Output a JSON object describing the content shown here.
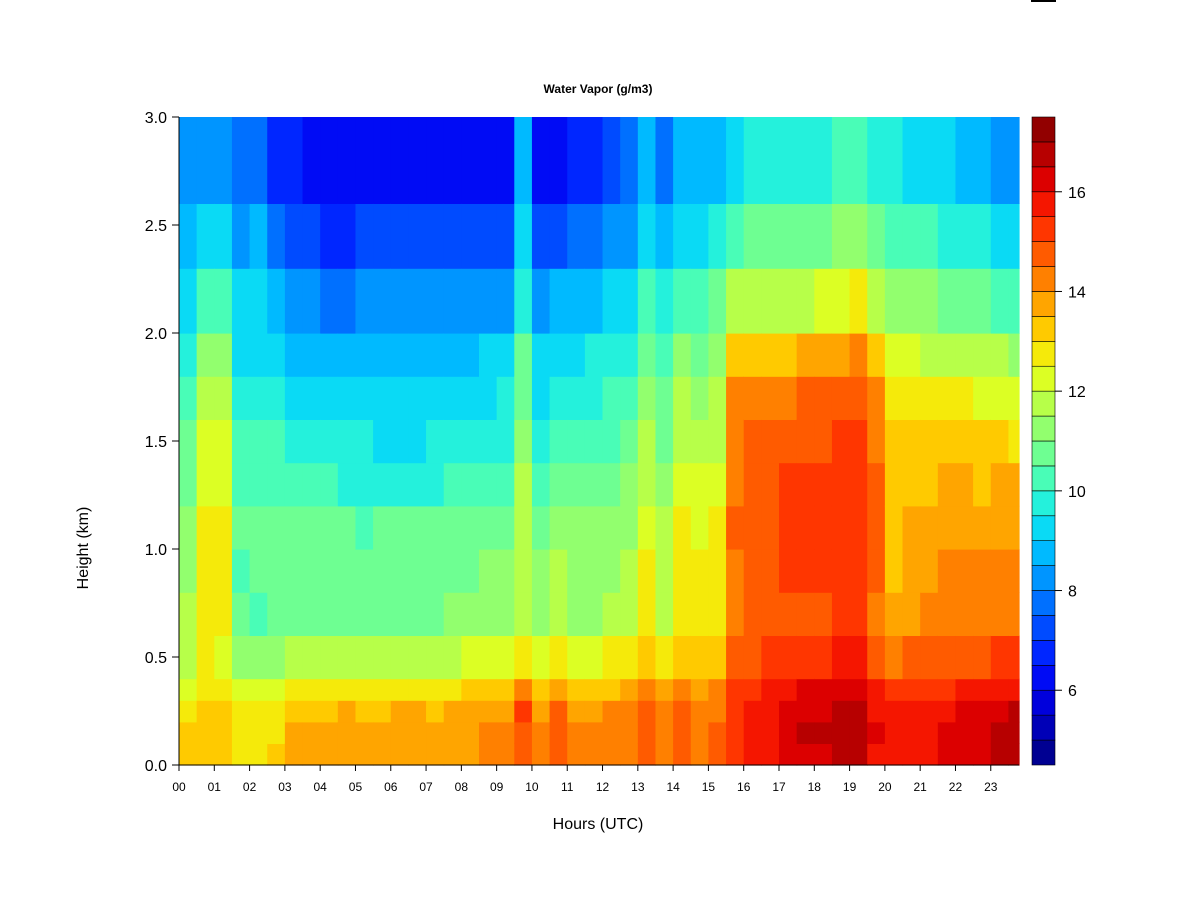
{
  "chart_data": {
    "type": "heatmap",
    "title": "Water Vapor (g/m3)",
    "xlabel": "Hours (UTC)",
    "ylabel": "Height (km)",
    "x_tick_labels": [
      "00",
      "01",
      "02",
      "03",
      "04",
      "05",
      "06",
      "07",
      "08",
      "09",
      "10",
      "11",
      "12",
      "13",
      "14",
      "15",
      "16",
      "17",
      "18",
      "19",
      "20",
      "21",
      "22",
      "23"
    ],
    "y_ticks": [
      0.0,
      0.5,
      1.0,
      1.5,
      2.0,
      2.5,
      3.0
    ],
    "y_tick_labels": [
      "0.0",
      "0.5",
      "1.0",
      "1.5",
      "2.0",
      "2.5",
      "3.0"
    ],
    "xlim": [
      0,
      23.8
    ],
    "ylim": [
      0,
      3.0
    ],
    "colorbar": {
      "min": 4.5,
      "max": 17.5,
      "ticks": [
        6,
        8,
        10,
        12,
        14,
        16
      ],
      "tick_labels": [
        "6",
        "8",
        "10",
        "12",
        "14",
        "16"
      ],
      "levels": 26,
      "colors": [
        "#000080",
        "#0000b0",
        "#0000e0",
        "#0010ff",
        "#0040ff",
        "#0070ff",
        "#00a0ff",
        "#00d0ff",
        "#20f0e0",
        "#50ffb0",
        "#80ff80",
        "#b0ff50",
        "#e0ff20",
        "#ffe000",
        "#ffb000",
        "#ff8000",
        "#ff5000",
        "#ff2000",
        "#e00000",
        "#b00000",
        "#800000"
      ]
    },
    "height_levels_km": [
      0.0,
      0.1,
      0.2,
      0.3,
      0.4,
      0.6,
      0.8,
      1.0,
      1.2,
      1.4,
      1.6,
      1.8,
      2.0,
      2.3,
      2.6,
      3.0
    ],
    "time_bins_hours": [
      {
        "t": 0,
        "profile": [
          13.1,
          13.0,
          12.9,
          12.3,
          12.0,
          11.5,
          11.0,
          11.0,
          10.8,
          10.5,
          10.2,
          9.9,
          9.3,
          8.7,
          8.3,
          7.8
        ]
      },
      {
        "t": 0.5,
        "profile": [
          13.2,
          13.3,
          13.4,
          12.8,
          12.6,
          12.5,
          12.5,
          12.5,
          12.4,
          12.3,
          12.0,
          11.3,
          10.0,
          9.0,
          8.4,
          7.8
        ]
      },
      {
        "t": 1,
        "profile": [
          13.0,
          13.1,
          13.1,
          12.5,
          12.4,
          12.5,
          12.8,
          12.6,
          12.3,
          12.2,
          11.9,
          11.2,
          10.0,
          9.1,
          8.2,
          7.4
        ]
      },
      {
        "t": 1.5,
        "profile": [
          12.8,
          12.8,
          12.9,
          12.1,
          11.2,
          10.5,
          10.4,
          10.6,
          10.3,
          10.1,
          9.8,
          9.3,
          9.0,
          8.3,
          7.6,
          6.7
        ]
      },
      {
        "t": 2,
        "profile": [
          12.8,
          12.7,
          12.7,
          12.1,
          11.1,
          10.3,
          10.5,
          10.6,
          10.2,
          10.0,
          9.8,
          9.4,
          9.0,
          8.5,
          7.6,
          6.6
        ]
      },
      {
        "t": 2.5,
        "profile": [
          13.0,
          12.9,
          12.8,
          12.1,
          11.1,
          10.6,
          10.8,
          10.7,
          10.2,
          10.0,
          9.6,
          9.1,
          8.6,
          7.8,
          6.9,
          6.2
        ]
      },
      {
        "t": 3,
        "profile": [
          13.5,
          13.5,
          13.3,
          12.6,
          11.8,
          10.8,
          10.6,
          10.5,
          10.2,
          9.8,
          9.3,
          8.8,
          8.2,
          7.3,
          6.5,
          5.8
        ]
      },
      {
        "t": 3.5,
        "profile": [
          13.6,
          13.5,
          13.4,
          12.7,
          11.9,
          10.9,
          10.6,
          10.6,
          10.1,
          9.7,
          9.2,
          8.7,
          8.0,
          7.0,
          6.0,
          5.5
        ]
      },
      {
        "t": 4,
        "profile": [
          13.6,
          13.6,
          13.4,
          12.8,
          11.8,
          10.9,
          10.7,
          10.5,
          10.0,
          9.5,
          9.1,
          8.6,
          7.8,
          6.9,
          6.0,
          5.4
        ]
      },
      {
        "t": 4.5,
        "profile": [
          13.6,
          13.6,
          13.5,
          12.8,
          11.8,
          10.8,
          10.7,
          10.5,
          9.9,
          9.5,
          9.1,
          8.6,
          7.8,
          6.9,
          6.0,
          5.5
        ]
      },
      {
        "t": 5,
        "profile": [
          13.6,
          13.6,
          13.4,
          12.8,
          11.8,
          10.8,
          10.7,
          10.4,
          9.9,
          9.5,
          9.1,
          8.7,
          8.0,
          7.0,
          6.0,
          5.5
        ]
      },
      {
        "t": 5.5,
        "profile": [
          13.6,
          13.5,
          13.4,
          12.8,
          11.9,
          10.8,
          10.8,
          10.5,
          9.8,
          9.4,
          9.1,
          8.8,
          8.1,
          7.0,
          6.0,
          5.4
        ]
      },
      {
        "t": 6,
        "profile": [
          13.6,
          13.6,
          13.5,
          12.8,
          11.9,
          10.8,
          10.8,
          10.6,
          9.9,
          9.4,
          9.0,
          8.7,
          8.1,
          7.0,
          6.0,
          5.4
        ]
      },
      {
        "t": 6.5,
        "profile": [
          13.6,
          13.6,
          13.5,
          12.8,
          11.8,
          10.9,
          10.8,
          10.5,
          9.9,
          9.4,
          9.0,
          8.7,
          8.1,
          7.0,
          6.0,
          5.4
        ]
      },
      {
        "t": 7,
        "profile": [
          13.7,
          13.6,
          13.4,
          12.8,
          11.9,
          10.9,
          10.8,
          10.5,
          9.9,
          9.5,
          9.1,
          8.8,
          8.1,
          7.0,
          6.0,
          5.4
        ]
      },
      {
        "t": 7.5,
        "profile": [
          13.7,
          13.7,
          13.5,
          12.9,
          12.0,
          11.0,
          10.8,
          10.5,
          10.0,
          9.6,
          9.2,
          8.8,
          8.1,
          7.1,
          6.0,
          5.4
        ]
      },
      {
        "t": 8,
        "profile": [
          13.9,
          13.9,
          13.7,
          13.0,
          12.1,
          11.0,
          10.9,
          10.6,
          10.1,
          9.7,
          9.3,
          8.9,
          8.2,
          7.2,
          6.1,
          5.5
        ]
      },
      {
        "t": 8.5,
        "profile": [
          14.0,
          14.0,
          13.8,
          13.1,
          12.2,
          11.1,
          11.0,
          10.7,
          10.2,
          9.8,
          9.4,
          9.0,
          8.3,
          7.3,
          6.2,
          5.6
        ]
      },
      {
        "t": 9,
        "profile": [
          14.0,
          14.0,
          13.8,
          13.1,
          12.2,
          11.2,
          11.1,
          10.8,
          10.3,
          9.9,
          9.5,
          9.0,
          8.3,
          7.3,
          6.3,
          5.6
        ]
      },
      {
        "t": 9.5,
        "profile": [
          14.6,
          14.7,
          15.0,
          14.2,
          12.8,
          12.0,
          12.0,
          11.8,
          11.5,
          11.2,
          10.9,
          10.5,
          9.9,
          9.2,
          8.6,
          8.0
        ]
      },
      {
        "t": 10,
        "profile": [
          14.1,
          14.1,
          13.9,
          13.2,
          12.3,
          11.2,
          11.1,
          10.9,
          10.3,
          9.9,
          9.4,
          9.0,
          8.3,
          7.3,
          6.3,
          5.5
        ]
      },
      {
        "t": 10.5,
        "profile": [
          14.5,
          14.6,
          14.5,
          13.8,
          12.7,
          11.6,
          11.6,
          11.3,
          10.8,
          10.4,
          9.9,
          9.3,
          8.5,
          7.4,
          6.3,
          5.5
        ]
      },
      {
        "t": 11,
        "profile": [
          14.1,
          14.1,
          13.9,
          13.3,
          12.4,
          11.3,
          11.2,
          11.0,
          10.6,
          10.2,
          9.8,
          9.3,
          8.6,
          7.6,
          6.6,
          6.0
        ]
      },
      {
        "t": 11.5,
        "profile": [
          14.0,
          14.0,
          13.9,
          13.3,
          12.4,
          11.4,
          11.3,
          11.1,
          10.7,
          10.3,
          9.9,
          9.5,
          8.8,
          7.8,
          6.9,
          6.3
        ]
      },
      {
        "t": 12,
        "profile": [
          14.1,
          14.1,
          14.0,
          13.4,
          12.5,
          11.5,
          11.4,
          11.2,
          10.8,
          10.4,
          10.0,
          9.6,
          9.0,
          8.1,
          7.2,
          6.6
        ]
      },
      {
        "t": 12.5,
        "profile": [
          14.2,
          14.2,
          14.1,
          13.6,
          12.8,
          11.8,
          11.6,
          11.4,
          11.0,
          10.6,
          10.2,
          9.8,
          9.2,
          8.3,
          7.5,
          6.9
        ]
      },
      {
        "t": 13,
        "profile": [
          14.7,
          14.8,
          14.8,
          14.2,
          13.4,
          12.6,
          12.5,
          12.3,
          11.9,
          11.6,
          11.1,
          10.6,
          10.1,
          9.3,
          8.6,
          8.0
        ]
      },
      {
        "t": 13.5,
        "profile": [
          14.3,
          14.3,
          14.2,
          13.7,
          12.9,
          12.0,
          11.8,
          11.6,
          11.3,
          10.9,
          10.5,
          10.1,
          9.5,
          8.6,
          7.8,
          7.2
        ]
      },
      {
        "t": 14,
        "profile": [
          14.6,
          14.6,
          14.5,
          14.0,
          13.4,
          12.7,
          12.6,
          12.5,
          12.2,
          11.9,
          11.5,
          11.0,
          10.3,
          9.4,
          8.6,
          7.9
        ]
      },
      {
        "t": 14.5,
        "profile": [
          14.4,
          14.4,
          14.3,
          13.9,
          13.3,
          12.6,
          12.5,
          12.4,
          12.1,
          11.8,
          11.4,
          10.9,
          10.3,
          9.4,
          8.6,
          7.9
        ]
      },
      {
        "t": 15,
        "profile": [
          14.5,
          14.5,
          14.4,
          14.0,
          13.4,
          12.8,
          12.7,
          12.6,
          12.3,
          12.0,
          11.6,
          11.2,
          10.6,
          9.6,
          8.8,
          8.1
        ]
      },
      {
        "t": 15.5,
        "profile": [
          15.3,
          15.4,
          15.3,
          15.0,
          14.7,
          14.3,
          14.4,
          14.5,
          14.4,
          14.3,
          14.0,
          13.0,
          11.6,
          10.3,
          9.3,
          8.6
        ]
      },
      {
        "t": 16,
        "profile": [
          15.5,
          15.6,
          15.5,
          15.2,
          14.9,
          14.5,
          14.6,
          14.7,
          14.6,
          14.5,
          14.2,
          13.2,
          11.8,
          10.5,
          9.5,
          8.8
        ]
      },
      {
        "t": 16.5,
        "profile": [
          15.8,
          15.9,
          15.8,
          15.5,
          15.0,
          14.6,
          14.8,
          14.9,
          14.8,
          14.7,
          14.3,
          13.3,
          11.9,
          10.6,
          9.6,
          8.9
        ]
      },
      {
        "t": 17,
        "profile": [
          16.2,
          16.3,
          16.2,
          15.8,
          15.2,
          14.8,
          15.0,
          15.1,
          15.0,
          14.8,
          14.4,
          13.4,
          11.9,
          10.6,
          9.6,
          8.9
        ]
      },
      {
        "t": 17.5,
        "profile": [
          16.4,
          16.5,
          16.4,
          16.0,
          15.4,
          14.9,
          15.1,
          15.2,
          15.1,
          14.9,
          14.5,
          13.5,
          12.0,
          10.7,
          9.7,
          9.0
        ]
      },
      {
        "t": 18,
        "profile": [
          16.4,
          16.5,
          16.4,
          16.0,
          15.4,
          14.9,
          15.1,
          15.2,
          15.1,
          14.9,
          14.6,
          13.7,
          12.2,
          10.9,
          9.9,
          9.2
        ]
      },
      {
        "t": 18.5,
        "profile": [
          16.5,
          16.6,
          16.5,
          16.1,
          15.5,
          15.0,
          15.2,
          15.3,
          15.2,
          15.0,
          14.7,
          13.9,
          12.4,
          11.1,
          10.1,
          9.4
        ]
      },
      {
        "t": 19,
        "profile": [
          16.6,
          16.7,
          16.6,
          16.2,
          15.6,
          15.1,
          15.3,
          15.4,
          15.3,
          15.1,
          14.8,
          14.0,
          12.5,
          11.2,
          10.2,
          9.5
        ]
      },
      {
        "t": 19.5,
        "profile": [
          15.9,
          16.0,
          15.9,
          15.5,
          14.9,
          14.4,
          14.5,
          14.6,
          14.5,
          14.3,
          14.0,
          13.3,
          12.0,
          10.8,
          9.9,
          9.3
        ]
      },
      {
        "t": 20,
        "profile": [
          15.5,
          15.6,
          15.5,
          15.1,
          14.4,
          13.6,
          13.4,
          13.3,
          13.2,
          13.0,
          12.7,
          12.2,
          11.4,
          10.4,
          9.6,
          9.0
        ]
      },
      {
        "t": 20.5,
        "profile": [
          15.6,
          15.7,
          15.6,
          15.2,
          14.5,
          13.8,
          13.7,
          13.6,
          13.4,
          13.1,
          12.7,
          12.2,
          11.3,
          10.3,
          9.4,
          8.8
        ]
      },
      {
        "t": 21,
        "profile": [
          15.8,
          15.9,
          15.8,
          15.3,
          14.6,
          14.0,
          13.9,
          13.7,
          13.4,
          13.1,
          12.6,
          12.0,
          11.1,
          10.1,
          9.2,
          8.6
        ]
      },
      {
        "t": 21.5,
        "profile": [
          16.0,
          16.1,
          15.9,
          15.4,
          14.7,
          14.1,
          14.0,
          13.8,
          13.5,
          13.1,
          12.6,
          11.9,
          10.9,
          9.9,
          9.0,
          8.4
        ]
      },
      {
        "t": 22,
        "profile": [
          16.1,
          16.2,
          16.0,
          15.5,
          14.8,
          14.2,
          14.0,
          13.8,
          13.5,
          13.1,
          12.5,
          11.8,
          10.8,
          9.7,
          8.9,
          8.3
        ]
      },
      {
        "t": 22.5,
        "profile": [
          16.3,
          16.4,
          16.2,
          15.6,
          14.9,
          14.2,
          14.0,
          13.8,
          13.4,
          13.0,
          12.4,
          11.6,
          10.6,
          9.5,
          8.7,
          8.1
        ]
      },
      {
        "t": 23,
        "profile": [
          16.6,
          16.6,
          16.3,
          15.7,
          15.0,
          14.3,
          14.1,
          13.9,
          13.5,
          13.0,
          12.3,
          11.5,
          10.4,
          9.3,
          8.4,
          7.9
        ]
      },
      {
        "t": 23.5,
        "profile": [
          16.8,
          16.8,
          16.5,
          15.8,
          15.0,
          14.3,
          14.1,
          13.9,
          13.5,
          12.9,
          12.2,
          11.3,
          10.2,
          9.1,
          8.3,
          7.8
        ]
      }
    ]
  }
}
